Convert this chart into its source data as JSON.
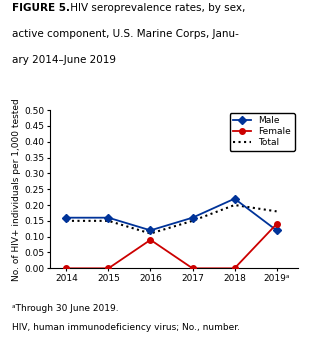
{
  "years": [
    2014,
    2015,
    2016,
    2017,
    2018,
    2019
  ],
  "year_labels": [
    "2014",
    "2015",
    "2016",
    "2017",
    "2018",
    "2019ᵃ"
  ],
  "male": [
    0.16,
    0.16,
    0.12,
    0.16,
    0.22,
    0.12
  ],
  "female": [
    0.0,
    0.0,
    0.09,
    0.0,
    0.0,
    0.14
  ],
  "total": [
    0.15,
    0.15,
    0.11,
    0.15,
    0.2,
    0.18
  ],
  "male_color": "#003399",
  "female_color": "#cc0000",
  "total_color": "#000000",
  "ylabel": "No. of HIV+ individuals per 1,000 tested",
  "ylim": [
    0,
    0.5
  ],
  "yticks": [
    0.0,
    0.05,
    0.1,
    0.15,
    0.2,
    0.25,
    0.3,
    0.35,
    0.4,
    0.45,
    0.5
  ],
  "title_bold": "FIGURE 5.",
  "title_normal": " HIV seroprevalence rates, by sex, active component, U.S. Marine Corps, Janu-ary 2014–June 2019",
  "footnote1": "ᵃThrough 30 June 2019.",
  "footnote2": "HIV, human immunodeficiency virus; No., number."
}
